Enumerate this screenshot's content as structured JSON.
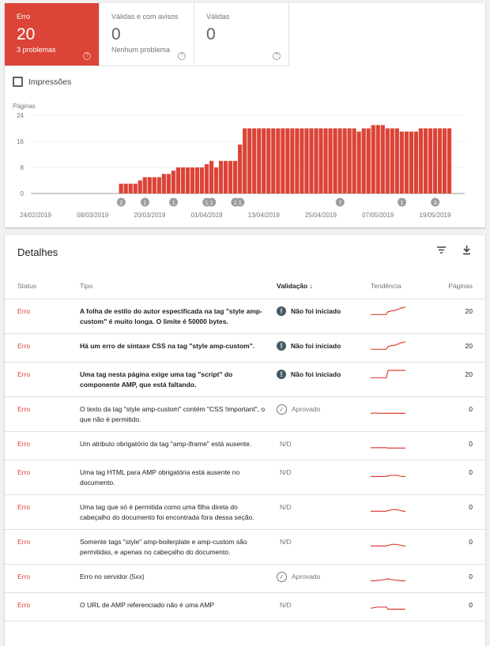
{
  "tiles": [
    {
      "label": "Erro",
      "value": "20",
      "sub": "3 problemas"
    },
    {
      "label": "Válidas e com avisos",
      "value": "0",
      "sub": "Nenhum problema"
    },
    {
      "label": "Válidas",
      "value": "0",
      "sub": ""
    }
  ],
  "impressions_label": "Impressões",
  "accent": "#db4437",
  "chart_data": {
    "type": "bar",
    "ylabel": "Páginas",
    "ylim": [
      0,
      24
    ],
    "yticks": [
      "24",
      "16",
      "8",
      "0"
    ],
    "xtick_labels": [
      "24/02/2019",
      "08/03/2019",
      "20/03/2019",
      "01/04/2019",
      "13/04/2019",
      "25/04/2019",
      "07/05/2019",
      "19/05/2019"
    ],
    "start_date": "2019-03-14",
    "values": [
      3,
      3,
      3,
      3,
      4,
      5,
      5,
      5,
      5,
      6,
      6,
      7,
      8,
      8,
      8,
      8,
      8,
      8,
      9,
      10,
      8,
      10,
      10,
      10,
      10,
      15,
      20,
      20,
      20,
      20,
      20,
      20,
      20,
      20,
      20,
      20,
      20,
      20,
      20,
      20,
      20,
      20,
      20,
      20,
      20,
      20,
      20,
      20,
      20,
      20,
      19,
      20,
      20,
      21,
      21,
      21,
      20,
      20,
      20,
      19,
      19,
      19,
      19,
      20,
      20,
      20,
      20,
      20,
      20,
      20
    ],
    "annotations": [
      {
        "date": "2019-03-14",
        "label": "2"
      },
      {
        "date": "2019-03-19",
        "label": "1"
      },
      {
        "date": "2019-03-25",
        "label": "1"
      },
      {
        "date": "2019-04-01",
        "label": "1"
      },
      {
        "date": "2019-04-02",
        "label": "1"
      },
      {
        "date": "2019-04-07",
        "label": "1"
      },
      {
        "date": "2019-04-08",
        "label": "1"
      },
      {
        "date": "2019-04-29",
        "label": "7"
      },
      {
        "date": "2019-05-12",
        "label": "1"
      },
      {
        "date": "2019-05-19",
        "label": "3"
      }
    ]
  },
  "details": {
    "title": "Detalhes",
    "columns": [
      "Status",
      "Tipo",
      "Validação",
      "Tendência",
      "Páginas"
    ],
    "rows": [
      {
        "status": "Erro",
        "type": "A folha de estilo do autor especificada na tag \"style amp-custom\" é muito longa. O limite é 50000 bytes.",
        "validation": "Não foi iniciado",
        "vicon": "alert",
        "pages": "20",
        "trend": [
          3,
          3,
          3,
          3,
          3,
          3,
          3,
          3,
          3,
          3,
          10,
          10,
          12,
          12,
          12,
          15,
          15,
          18,
          18,
          20,
          20
        ]
      },
      {
        "status": "Erro",
        "type": "Há um erro de sintaxe CSS na tag \"style amp-custom\".",
        "validation": "Não foi iniciado",
        "vicon": "alert",
        "pages": "20",
        "trend": [
          3,
          3,
          3,
          3,
          3,
          3,
          3,
          3,
          3,
          3,
          10,
          10,
          12,
          12,
          12,
          15,
          15,
          18,
          18,
          20,
          20
        ]
      },
      {
        "status": "Erro",
        "type": "Uma tag nesta página exige uma tag \"script\" do componente AMP, que está faltando.",
        "validation": "Não foi iniciado",
        "vicon": "alert",
        "pages": "20",
        "trend": [
          3,
          3,
          3,
          3,
          3,
          3,
          3,
          3,
          3,
          3,
          20,
          20,
          20,
          20,
          20,
          20,
          20,
          20,
          20,
          20,
          20
        ]
      },
      {
        "status": "Erro",
        "type": "O texto da tag \"style amp-custom\" contém \"CSS !important\", o que não é permitido.",
        "validation": "Aprovado",
        "vicon": "check",
        "pages": "0",
        "trend": [
          1,
          1,
          1.5,
          2,
          1.5,
          1,
          1,
          1,
          1,
          1,
          1,
          1,
          1,
          1,
          1,
          1,
          1,
          1,
          1,
          1,
          1
        ]
      },
      {
        "status": "Erro",
        "type": "Um atributo obrigatório da tag \"amp-iframe\" está ausente.",
        "validation": "N/D",
        "vicon": "",
        "pages": "0",
        "trend": [
          2,
          2,
          2,
          2,
          2,
          2,
          2,
          2,
          2,
          2,
          1,
          1,
          1,
          1,
          1,
          1,
          1,
          1,
          1,
          1,
          1
        ]
      },
      {
        "status": "Erro",
        "type": "Uma tag HTML para AMP obrigatória está ausente no documento.",
        "validation": "N/D",
        "vicon": "",
        "pages": "0",
        "trend": [
          1,
          1,
          1,
          1,
          1,
          1,
          1,
          1,
          1,
          2,
          2,
          4,
          4,
          4,
          4,
          4,
          3,
          2,
          1,
          1,
          1
        ]
      },
      {
        "status": "Erro",
        "type": "Uma tag que só é permitida como uma filha direta do cabeçalho do documento foi encontrada fora dessa seção.",
        "validation": "N/D",
        "vicon": "",
        "pages": "0",
        "trend": [
          1,
          1,
          1,
          1,
          1,
          1,
          1,
          1,
          1,
          1,
          3,
          3,
          5,
          5,
          5,
          5,
          4,
          3,
          2,
          1,
          1
        ]
      },
      {
        "status": "Erro",
        "type": "Somente tags \"style\" amp-boilerplate e amp-custom são permitidas, e apenas no cabeçalho do documento.",
        "validation": "N/D",
        "vicon": "",
        "pages": "0",
        "trend": [
          1,
          1,
          1,
          1,
          1,
          1,
          1,
          1,
          1,
          1,
          3,
          3,
          5,
          5,
          5,
          5,
          4,
          3,
          2,
          1,
          1
        ]
      },
      {
        "status": "Erro",
        "type": "Erro no servidor (5xx)",
        "validation": "Aprovado",
        "vicon": "check",
        "pages": "0",
        "trend": [
          1,
          1,
          1,
          1,
          2,
          2,
          3,
          3,
          4,
          4,
          6,
          4,
          4,
          3,
          3,
          2,
          2,
          1,
          1,
          1,
          1
        ]
      },
      {
        "status": "Erro",
        "type": "O URL de AMP referenciado não é uma AMP",
        "validation": "N/D",
        "vicon": "",
        "pages": "0",
        "trend": [
          3,
          4,
          5,
          5,
          6,
          6,
          6,
          6,
          6,
          6,
          1,
          1,
          1,
          1,
          1,
          1,
          1,
          1,
          1,
          1,
          1
        ]
      }
    ]
  }
}
